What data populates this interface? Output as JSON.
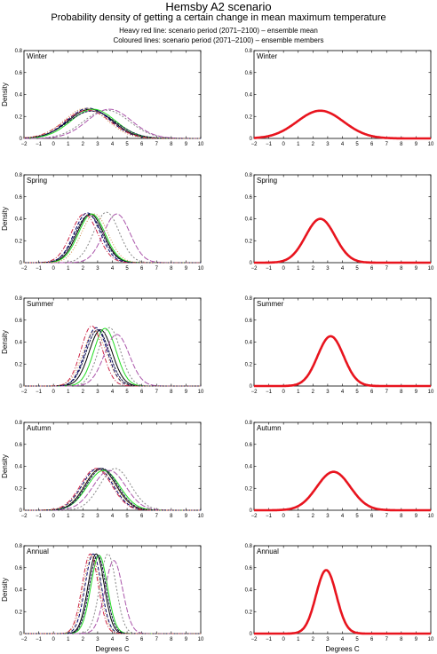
{
  "header": {
    "title": "Hemsby A2 scenario",
    "subtitle": "Probability density of getting a certain change in mean maximum temperature",
    "note_line1": "Heavy red line: scenario period (2071–2100) – ensemble mean",
    "note_line2": "Coloured lines: scenario period (2071–2100) – ensemble members"
  },
  "ylabel": "Density",
  "xlabel": "Degrees C",
  "x_ticks": [
    "−2",
    "−1",
    "0",
    "1",
    "2",
    "3",
    "4",
    "5",
    "6",
    "7",
    "8",
    "9",
    "10"
  ],
  "y_ticks": [
    "0",
    "0.2",
    "0.4",
    "0.6",
    "0.8"
  ],
  "colors": {
    "mean": "#e8141e",
    "members": [
      "#000000",
      "#000066",
      "#22dd22",
      "#cc2244",
      "#888888",
      "#aa55aa",
      "#111144",
      "#cc8844"
    ]
  },
  "chart_data": [
    {
      "type": "line",
      "season": "Winter",
      "panel": "members",
      "xlim": [
        -2,
        10
      ],
      "ylim": [
        0,
        0.8
      ],
      "series": [
        {
          "mean": 2.5,
          "sd": 1.5
        },
        {
          "mean": 2.4,
          "sd": 1.45
        },
        {
          "mean": 2.7,
          "sd": 1.5
        },
        {
          "mean": 2.3,
          "sd": 1.55
        },
        {
          "mean": 3.6,
          "sd": 1.55
        },
        {
          "mean": 3.8,
          "sd": 1.5
        },
        {
          "mean": 2.6,
          "sd": 1.6
        },
        {
          "mean": 2.2,
          "sd": 1.45
        }
      ]
    },
    {
      "type": "line",
      "season": "Winter",
      "panel": "ensemble-mean",
      "xlim": [
        -2,
        10
      ],
      "ylim": [
        0,
        0.8
      ],
      "series": [
        {
          "mean": 2.5,
          "sd": 1.58
        }
      ]
    },
    {
      "type": "line",
      "season": "Spring",
      "panel": "members",
      "xlim": [
        -2,
        10
      ],
      "ylim": [
        0,
        0.8
      ],
      "series": [
        {
          "mean": 2.5,
          "sd": 0.9
        },
        {
          "mean": 2.3,
          "sd": 0.88
        },
        {
          "mean": 2.6,
          "sd": 0.9
        },
        {
          "mean": 2.1,
          "sd": 0.9
        },
        {
          "mean": 3.6,
          "sd": 0.87
        },
        {
          "mean": 4.3,
          "sd": 0.9
        },
        {
          "mean": 2.4,
          "sd": 0.92
        },
        {
          "mean": 2.8,
          "sd": 0.9
        }
      ]
    },
    {
      "type": "line",
      "season": "Spring",
      "panel": "ensemble-mean",
      "xlim": [
        -2,
        10
      ],
      "ylim": [
        0,
        0.8
      ],
      "series": [
        {
          "mean": 2.5,
          "sd": 1.0
        }
      ]
    },
    {
      "type": "line",
      "season": "Summer",
      "panel": "members",
      "xlim": [
        -2,
        10
      ],
      "ylim": [
        0,
        0.8
      ],
      "series": [
        {
          "mean": 3.2,
          "sd": 0.78
        },
        {
          "mean": 2.9,
          "sd": 0.75
        },
        {
          "mean": 3.5,
          "sd": 0.76
        },
        {
          "mean": 2.6,
          "sd": 0.73
        },
        {
          "mean": 3.8,
          "sd": 0.75
        },
        {
          "mean": 4.3,
          "sd": 0.85
        },
        {
          "mean": 3.0,
          "sd": 0.78
        },
        {
          "mean": 2.8,
          "sd": 0.8
        }
      ]
    },
    {
      "type": "line",
      "season": "Summer",
      "panel": "ensemble-mean",
      "xlim": [
        -2,
        10
      ],
      "ylim": [
        0,
        0.8
      ],
      "series": [
        {
          "mean": 3.2,
          "sd": 0.88
        }
      ]
    },
    {
      "type": "line",
      "season": "Autumn",
      "panel": "members",
      "xlim": [
        -2,
        10
      ],
      "ylim": [
        0,
        0.8
      ],
      "series": [
        {
          "mean": 3.2,
          "sd": 1.05
        },
        {
          "mean": 3.0,
          "sd": 1.05
        },
        {
          "mean": 3.4,
          "sd": 1.1
        },
        {
          "mean": 2.9,
          "sd": 1.05
        },
        {
          "mean": 4.2,
          "sd": 1.05
        },
        {
          "mean": 3.8,
          "sd": 1.1
        },
        {
          "mean": 3.3,
          "sd": 1.05
        },
        {
          "mean": 3.1,
          "sd": 1.1
        }
      ]
    },
    {
      "type": "line",
      "season": "Autumn",
      "panel": "ensemble-mean",
      "xlim": [
        -2,
        10
      ],
      "ylim": [
        0,
        0.8
      ],
      "series": [
        {
          "mean": 3.4,
          "sd": 1.14
        }
      ]
    },
    {
      "type": "line",
      "season": "Annual",
      "panel": "members",
      "xlim": [
        -2,
        10
      ],
      "ylim": [
        0,
        0.8
      ],
      "series": [
        {
          "mean": 2.9,
          "sd": 0.55
        },
        {
          "mean": 2.7,
          "sd": 0.55
        },
        {
          "mean": 3.1,
          "sd": 0.56
        },
        {
          "mean": 2.5,
          "sd": 0.55
        },
        {
          "mean": 3.7,
          "sd": 0.55
        },
        {
          "mean": 4.1,
          "sd": 0.6
        },
        {
          "mean": 3.0,
          "sd": 0.56
        },
        {
          "mean": 2.6,
          "sd": 0.56
        }
      ]
    },
    {
      "type": "line",
      "season": "Annual",
      "panel": "ensemble-mean",
      "xlim": [
        -2,
        10
      ],
      "ylim": [
        0,
        0.8
      ],
      "series": [
        {
          "mean": 2.9,
          "sd": 0.69
        }
      ]
    }
  ]
}
